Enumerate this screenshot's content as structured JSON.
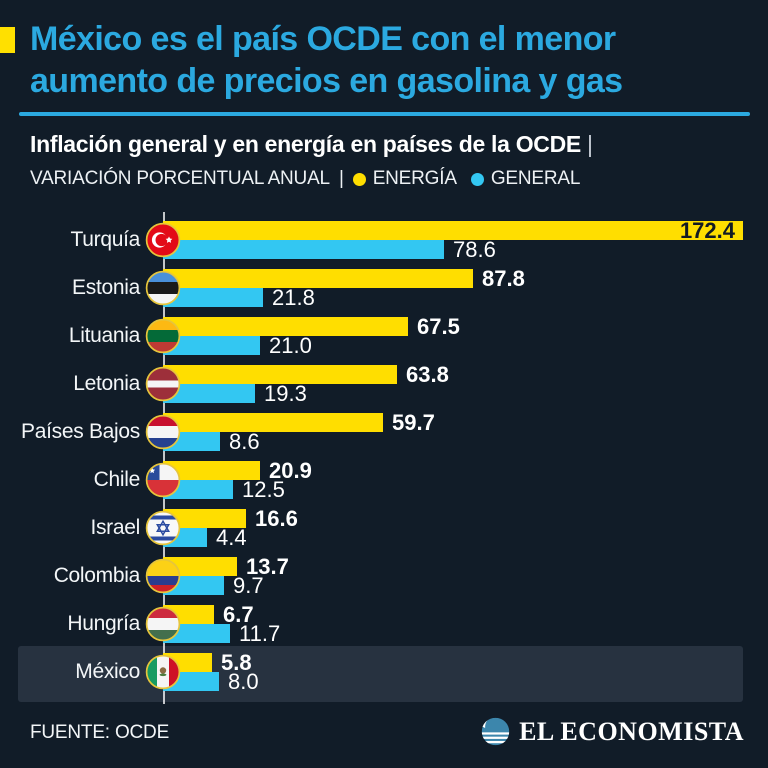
{
  "colors": {
    "background": "#111C28",
    "highlight_row": "#273240",
    "title_accent": "#2BA9E0",
    "accent_square": "#FFE000",
    "energy_bar": "#FFDE00",
    "general_bar": "#33C7F2",
    "axis_line": "#FFFFFF",
    "value_on_yellow": "#131B24"
  },
  "header": {
    "title_lines": [
      "México es el país OCDE con el menor",
      "aumento de precios en gasolina y gas"
    ],
    "subtitle": "Inflación general y en energía en países de la OCDE",
    "subtitle_separator": "|",
    "kicker": "VARIACIÓN PORCENTUAL ANUAL",
    "kicker_separator": "|",
    "legend": [
      {
        "label": "ENERGÍA",
        "color": "#FFDE00",
        "icon": "legend-dot-yellow"
      },
      {
        "label": "GENERAL",
        "color": "#33C7F2",
        "icon": "legend-dot-cyan"
      }
    ]
  },
  "chart_data": {
    "type": "bar",
    "orientation": "horizontal",
    "title": "Inflación general y en energía en países de la OCDE",
    "xlabel": "VARIACIÓN PORCENTUAL ANUAL",
    "categories": [
      "Turquía",
      "Estonia",
      "Lituania",
      "Letonia",
      "Países Bajos",
      "Chile",
      "Israel",
      "Colombia",
      "Hungría",
      "México"
    ],
    "flags": [
      "flag-turkey",
      "flag-estonia",
      "flag-lithuania",
      "flag-latvia",
      "flag-netherlands",
      "flag-chile",
      "flag-israel",
      "flag-colombia",
      "flag-hungary",
      "flag-mexico"
    ],
    "series": [
      {
        "name": "ENERGÍA",
        "color": "#FFDE00",
        "values": [
          172.4,
          87.8,
          67.5,
          63.8,
          59.7,
          20.9,
          16.6,
          13.7,
          6.7,
          5.8
        ]
      },
      {
        "name": "GENERAL",
        "color": "#33C7F2",
        "values": [
          78.6,
          21.8,
          21.0,
          19.3,
          8.6,
          12.5,
          4.4,
          9.7,
          11.7,
          8.0
        ]
      }
    ],
    "xlim": [
      0,
      172.4
    ],
    "grid": false,
    "legend_position": "top",
    "highlighted_category": "México",
    "value_label_inside_for": "Turquía"
  },
  "footer": {
    "source": "FUENTE: OCDE",
    "brand": "EL ECONOMISTA",
    "brand_icon": "el-economista-globe-icon"
  }
}
